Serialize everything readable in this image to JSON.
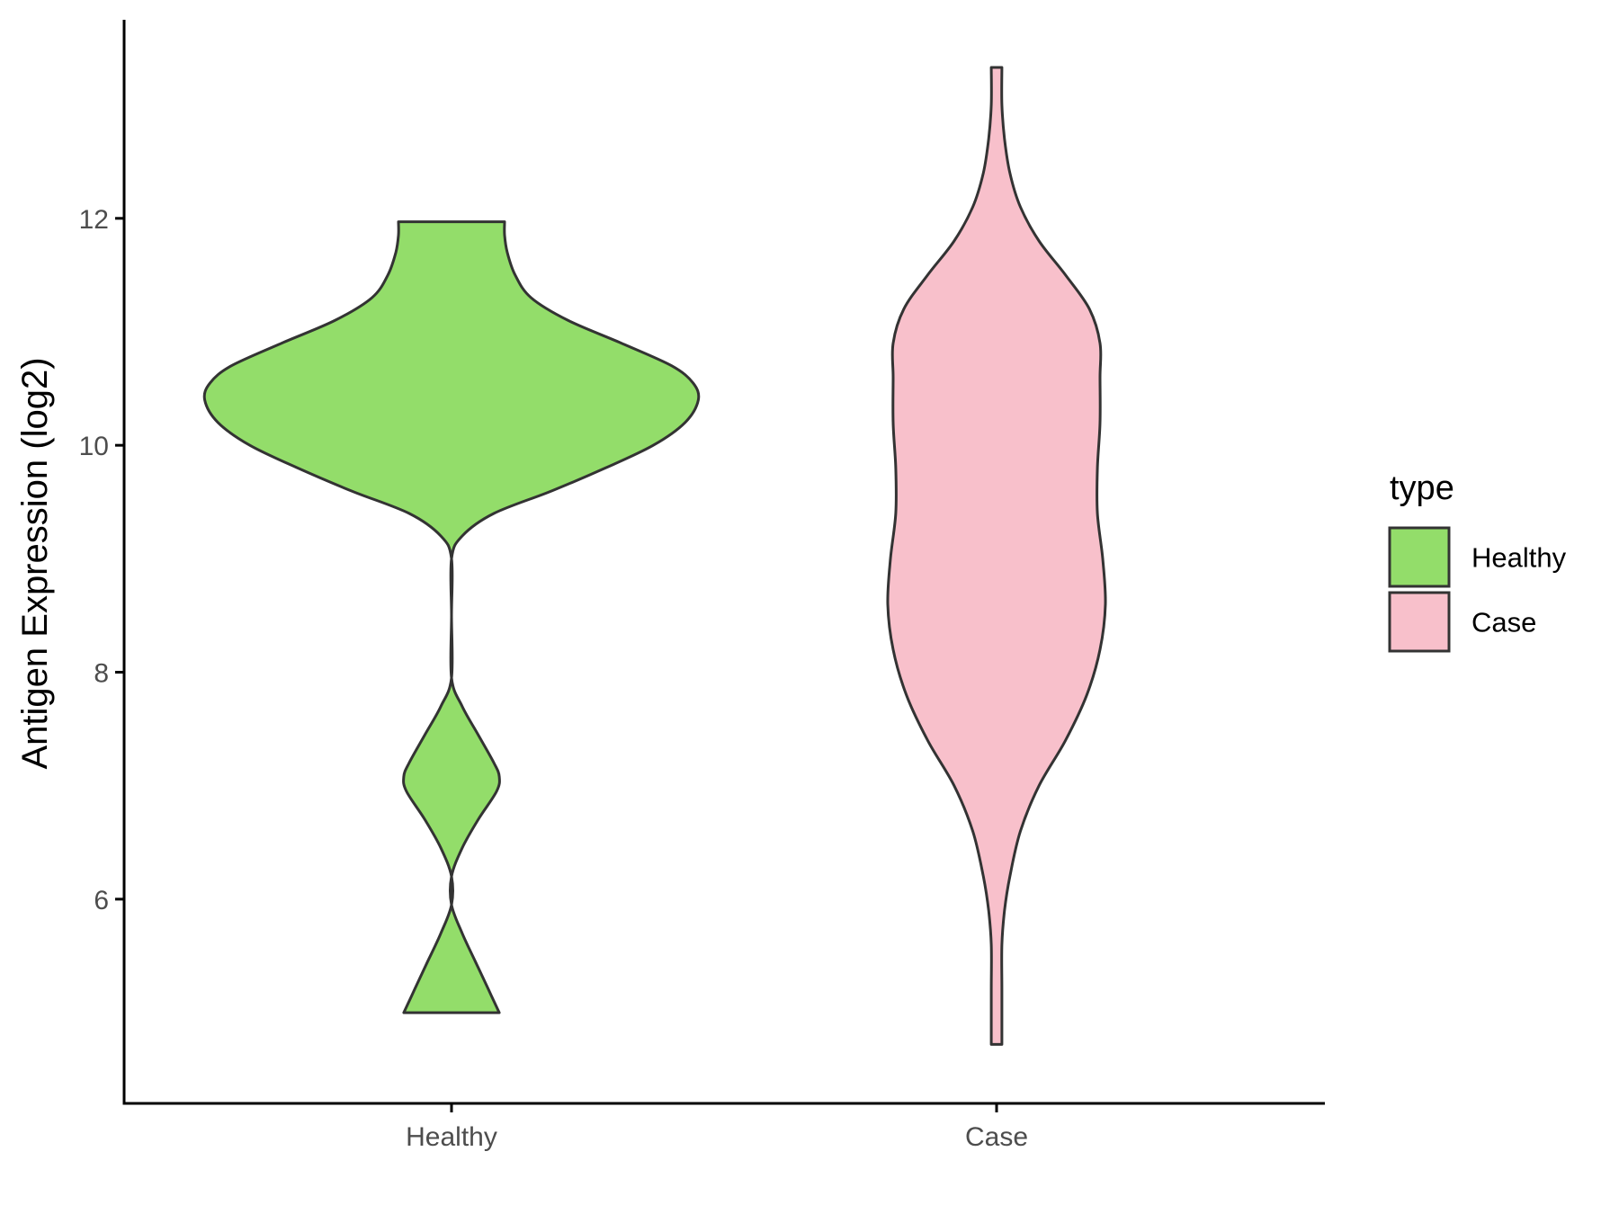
{
  "chart_data": {
    "type": "violin",
    "title": "",
    "xlabel": "",
    "ylabel": "Antigen Expression (log2)",
    "ylim": [
      4.2,
      13.75
    ],
    "yticks": [
      6,
      8,
      10,
      12
    ],
    "categories": [
      "Healthy",
      "Case"
    ],
    "legend": {
      "title": "type",
      "position": "right",
      "entries": [
        "Healthy",
        "Case"
      ]
    },
    "grid": false,
    "series": [
      {
        "category": "Healthy",
        "color": "#93dd6a",
        "min": 5.0,
        "max": 11.97,
        "density": [
          [
            5.0,
            0.18
          ],
          [
            5.2,
            0.14
          ],
          [
            5.45,
            0.09
          ],
          [
            5.7,
            0.04
          ],
          [
            5.95,
            0.0
          ],
          [
            6.2,
            0.0
          ],
          [
            6.45,
            0.04
          ],
          [
            6.7,
            0.1
          ],
          [
            6.95,
            0.17
          ],
          [
            7.08,
            0.18
          ],
          [
            7.2,
            0.16
          ],
          [
            7.45,
            0.1
          ],
          [
            7.7,
            0.04
          ],
          [
            7.95,
            0.0
          ],
          [
            8.5,
            0.0
          ],
          [
            9.0,
            0.0
          ],
          [
            9.2,
            0.04
          ],
          [
            9.4,
            0.16
          ],
          [
            9.6,
            0.38
          ],
          [
            9.8,
            0.58
          ],
          [
            10.0,
            0.76
          ],
          [
            10.2,
            0.88
          ],
          [
            10.4,
            0.93
          ],
          [
            10.55,
            0.91
          ],
          [
            10.7,
            0.83
          ],
          [
            10.9,
            0.64
          ],
          [
            11.1,
            0.44
          ],
          [
            11.3,
            0.3
          ],
          [
            11.5,
            0.24
          ],
          [
            11.7,
            0.21
          ],
          [
            11.85,
            0.2
          ],
          [
            11.97,
            0.2
          ]
        ]
      },
      {
        "category": "Case",
        "color": "#f8c0cb",
        "min": 4.72,
        "max": 13.33,
        "density": [
          [
            4.72,
            0.02
          ],
          [
            5.2,
            0.02
          ],
          [
            5.6,
            0.02
          ],
          [
            5.9,
            0.03
          ],
          [
            6.2,
            0.05
          ],
          [
            6.6,
            0.09
          ],
          [
            7.0,
            0.16
          ],
          [
            7.4,
            0.26
          ],
          [
            7.8,
            0.34
          ],
          [
            8.2,
            0.39
          ],
          [
            8.6,
            0.41
          ],
          [
            9.0,
            0.4
          ],
          [
            9.4,
            0.38
          ],
          [
            9.8,
            0.38
          ],
          [
            10.2,
            0.39
          ],
          [
            10.6,
            0.39
          ],
          [
            10.9,
            0.39
          ],
          [
            11.2,
            0.35
          ],
          [
            11.5,
            0.26
          ],
          [
            11.8,
            0.16
          ],
          [
            12.1,
            0.09
          ],
          [
            12.4,
            0.05
          ],
          [
            12.7,
            0.03
          ],
          [
            13.0,
            0.02
          ],
          [
            13.33,
            0.02
          ]
        ]
      }
    ]
  }
}
